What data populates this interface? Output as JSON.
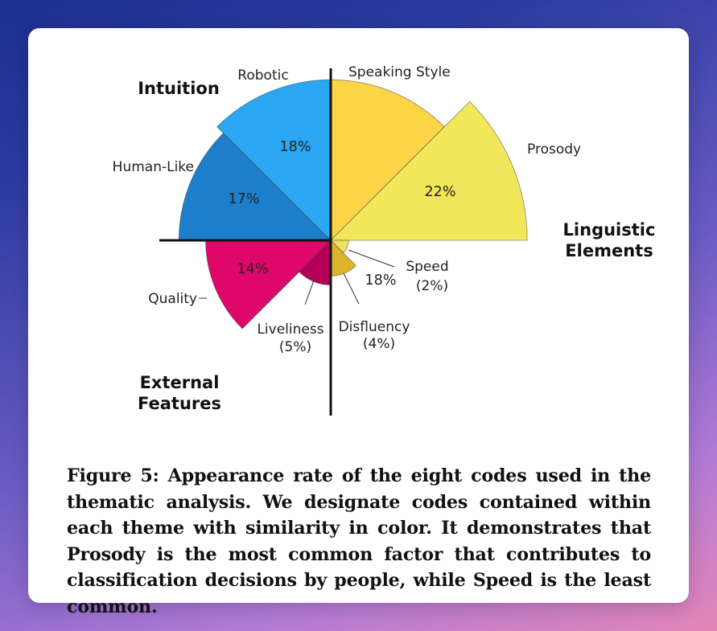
{
  "chart_data": {
    "type": "pie",
    "variant": "polar-area",
    "themes": [
      {
        "name": "Intuition",
        "codes": [
          "Robotic",
          "Human-Like"
        ]
      },
      {
        "name": "Linguistic Elements",
        "codes": [
          "Speaking Style",
          "Prosody",
          "Speed"
        ]
      },
      {
        "name": "External Features",
        "codes": [
          "Quality",
          "Liveliness",
          "Disfluency"
        ]
      }
    ],
    "slices": [
      {
        "name": "Speaking Style",
        "value": 18,
        "label": "18%",
        "color": "#fcd546",
        "theme": "Linguistic Elements"
      },
      {
        "name": "Prosody",
        "value": 22,
        "label": "22%",
        "color": "#f2e65a",
        "theme": "Linguistic Elements"
      },
      {
        "name": "Speed",
        "value": 2,
        "label": "(2%)",
        "color": "#efe05c",
        "theme": "Linguistic Elements"
      },
      {
        "name": "Disfluency",
        "value": 4,
        "label": "(4%)",
        "color": "#dbb42c",
        "theme": "External Features"
      },
      {
        "name": "Liveliness",
        "value": 5,
        "label": "(5%)",
        "color": "#b50057",
        "theme": "External Features"
      },
      {
        "name": "Quality",
        "value": 14,
        "label": "14%",
        "color": "#e0076a",
        "theme": "External Features"
      },
      {
        "name": "Human-Like",
        "value": 17,
        "label": "17%",
        "color": "#1d7fcc",
        "theme": "Intuition"
      },
      {
        "name": "Robotic",
        "value": 18,
        "label": "18%",
        "color": "#2aa7f2",
        "theme": "Intuition"
      }
    ]
  },
  "caption": "Figure 5: Appearance rate of the eight codes used in the thematic analysis. We designate codes contained within each theme with similarity in color. It demonstrates that Prosody is the most common factor that contributes to classification decisions by people, while Speed is the least common."
}
